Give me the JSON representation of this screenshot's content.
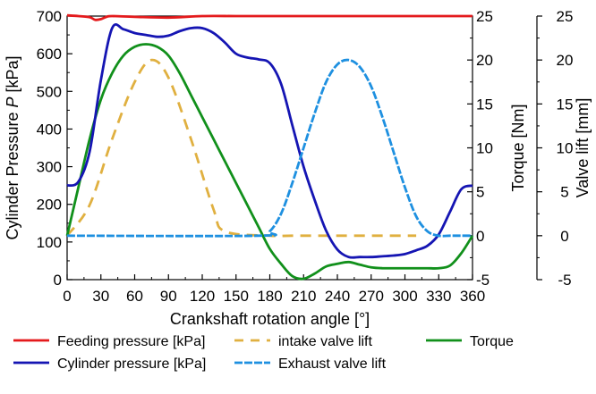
{
  "chart_data": {
    "type": "line",
    "xlabel": "Crankshaft rotation angle [°]",
    "x_ticks": [
      "0",
      "30",
      "60",
      "90",
      "120",
      "150",
      "180",
      "210",
      "240",
      "270",
      "300",
      "330",
      "360"
    ],
    "xlim": [
      0,
      360
    ],
    "axes": {
      "pressure": {
        "label_prefix": "Cylinder Pressure ",
        "label_symbol": "P",
        "label_suffix": " [kPa]",
        "ylim": [
          0,
          700
        ],
        "ticks": [
          "0",
          "100",
          "200",
          "300",
          "400",
          "500",
          "600",
          "700"
        ]
      },
      "torque": {
        "label": "Torque [Nm]",
        "ylim": [
          -5,
          25
        ],
        "ticks": [
          "-5",
          "0",
          "5",
          "10",
          "15",
          "20",
          "25"
        ]
      },
      "lift": {
        "label": "Valve lift [mm]",
        "ylim": [
          -5,
          25
        ],
        "ticks": [
          "-5",
          "0",
          "5",
          "10",
          "15",
          "20",
          "25"
        ]
      }
    },
    "series": [
      {
        "name": "Feeding pressure [kPa]",
        "axis": "pressure",
        "color": "#e41a1c",
        "dash": "solid",
        "x": [
          0,
          10,
          20,
          25,
          30,
          35,
          40,
          60,
          90,
          120,
          150,
          180,
          240,
          300,
          360
        ],
        "y": [
          702,
          700,
          697,
          690,
          692,
          698,
          700,
          698,
          696,
          700,
          700,
          700,
          700,
          700,
          700
        ]
      },
      {
        "name": "intake valve lift",
        "axis": "lift",
        "color": "#e0b040",
        "dash": "dashed",
        "x": [
          0,
          20,
          40,
          60,
          75,
          90,
          110,
          130,
          140,
          180,
          200,
          240,
          280,
          310
        ],
        "y": [
          0,
          3.5,
          11,
          17.5,
          20,
          18,
          11,
          3,
          0.5,
          0,
          0,
          0,
          0,
          0
        ]
      },
      {
        "name": "Torque",
        "axis": "torque",
        "color": "#11901b",
        "dash": "solid",
        "x": [
          0,
          10,
          20,
          30,
          40,
          50,
          60,
          70,
          80,
          90,
          100,
          110,
          120,
          130,
          140,
          150,
          160,
          170,
          180,
          190,
          200,
          210,
          220,
          230,
          240,
          250,
          260,
          270,
          280,
          290,
          300,
          310,
          320,
          330,
          340,
          350,
          360
        ],
        "y": [
          0,
          5.5,
          11,
          15.5,
          18.5,
          20.5,
          21.5,
          21.8,
          21.5,
          20.5,
          18.5,
          16,
          13.5,
          11,
          8.5,
          6,
          3.5,
          1,
          -1.5,
          -3.2,
          -4.6,
          -4.9,
          -4.3,
          -3.5,
          -3.2,
          -3,
          -3.3,
          -3.6,
          -3.7,
          -3.7,
          -3.7,
          -3.7,
          -3.7,
          -3.7,
          -3.4,
          -2,
          0
        ]
      },
      {
        "name": "Cylinder pressure [kPa]",
        "axis": "pressure",
        "color": "#1515b3",
        "dash": "solid",
        "x": [
          0,
          10,
          20,
          30,
          40,
          50,
          60,
          70,
          80,
          90,
          100,
          110,
          120,
          130,
          140,
          150,
          160,
          170,
          180,
          190,
          200,
          210,
          220,
          230,
          240,
          250,
          260,
          270,
          280,
          290,
          300,
          310,
          320,
          330,
          340,
          350,
          360
        ],
        "y": [
          250,
          260,
          340,
          530,
          668,
          665,
          655,
          650,
          645,
          648,
          660,
          668,
          668,
          655,
          630,
          600,
          590,
          585,
          575,
          520,
          410,
          300,
          210,
          130,
          80,
          60,
          60,
          60,
          62,
          64,
          68,
          78,
          90,
          120,
          180,
          240,
          250
        ]
      },
      {
        "name": "Exhaust valve lift",
        "axis": "lift",
        "color": "#1e90e0",
        "dash": "dashed",
        "x": [
          0,
          170,
          180,
          190,
          200,
          210,
          220,
          230,
          240,
          250,
          260,
          270,
          280,
          290,
          300,
          310,
          320,
          330,
          340,
          350,
          360
        ],
        "y": [
          0,
          0,
          0.5,
          2.5,
          6,
          10,
          14,
          17.5,
          19.5,
          20,
          19.2,
          17,
          13.5,
          9.5,
          5.5,
          2.2,
          0.5,
          0,
          0,
          0,
          0
        ]
      }
    ],
    "legend": [
      {
        "label": "Feeding pressure [kPa]",
        "color": "#e41a1c",
        "dash": "solid"
      },
      {
        "label": "intake valve lift",
        "color": "#e0b040",
        "dash": "dashed"
      },
      {
        "label": "Torque",
        "color": "#11901b",
        "dash": "solid"
      },
      {
        "label": "Cylinder pressure [kPa]",
        "color": "#1515b3",
        "dash": "solid"
      },
      {
        "label": "Exhaust valve lift",
        "color": "#1e90e0",
        "dash": "dashed"
      }
    ]
  }
}
